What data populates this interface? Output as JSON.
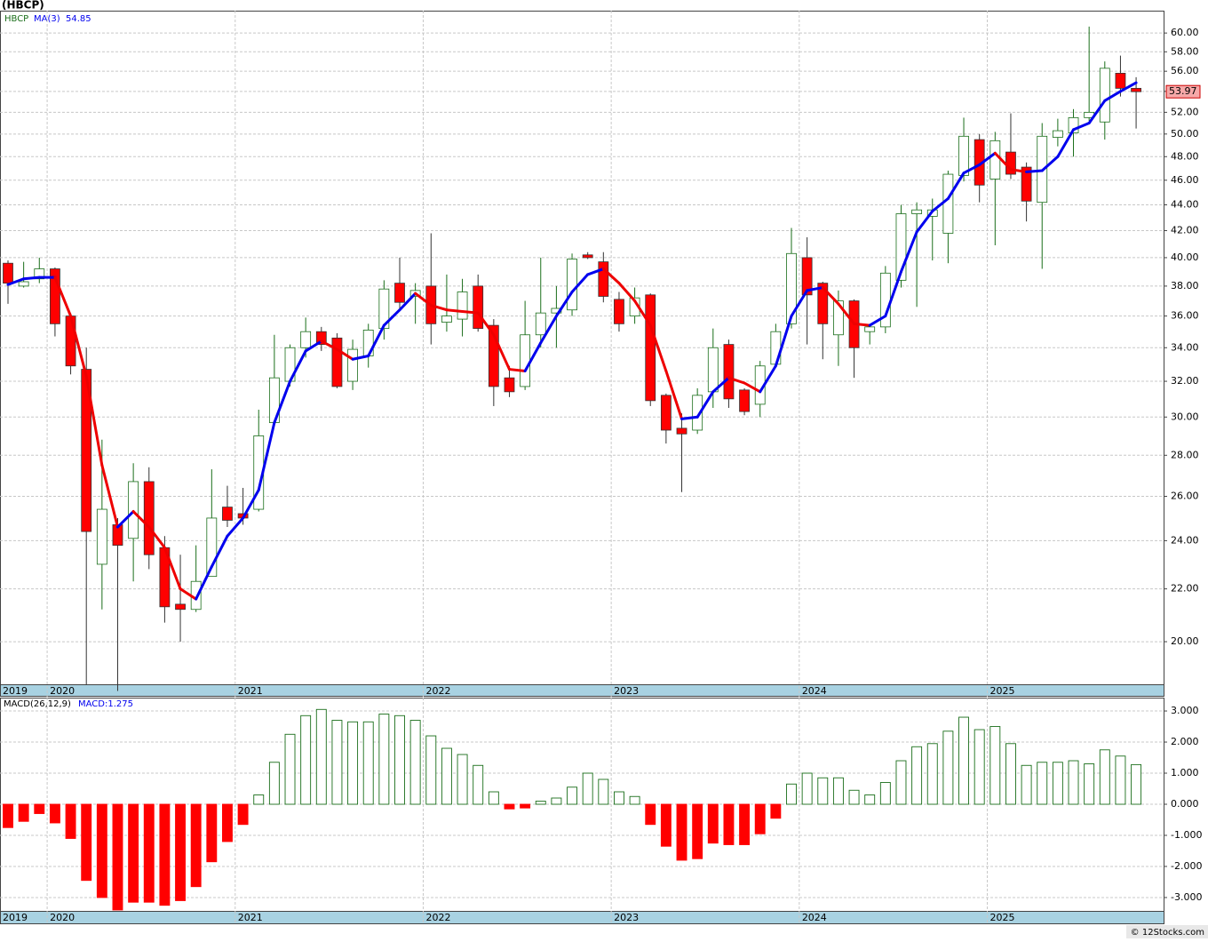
{
  "chart_data": [
    {
      "type": "candlestick",
      "title": "(HBCP)",
      "symbol": "HBCP",
      "log_scale": true,
      "grid": true,
      "up_color": "#ffffff",
      "up_edge": "#1a6e1a",
      "down_color": "#ff0000",
      "x": [
        "2019",
        null,
        null,
        "2020",
        null,
        null,
        null,
        null,
        null,
        null,
        null,
        null,
        null,
        null,
        null,
        "2021",
        null,
        null,
        null,
        null,
        null,
        null,
        null,
        null,
        null,
        null,
        null,
        "2022",
        null,
        null,
        null,
        null,
        null,
        null,
        null,
        null,
        null,
        null,
        null,
        "2023",
        null,
        null,
        null,
        null,
        null,
        null,
        null,
        null,
        null,
        null,
        null,
        "2024",
        null,
        null,
        null,
        null,
        null,
        null,
        null,
        null,
        null,
        null,
        null,
        "2025",
        null,
        null,
        null,
        null,
        null,
        null,
        null,
        null,
        null
      ],
      "open": [
        39.6,
        38.0,
        38.5,
        39.2,
        36.0,
        32.7,
        23.0,
        24.7,
        24.1,
        26.7,
        23.7,
        21.4,
        21.2,
        22.5,
        25.5,
        25.2,
        25.4,
        29.7,
        32.0,
        34.0,
        35.0,
        34.6,
        32.0,
        33.5,
        35.2,
        38.2,
        37.3,
        38.0,
        35.6,
        35.8,
        38.0,
        35.4,
        32.2,
        31.7,
        34.8,
        36.2,
        36.4,
        40.2,
        39.7,
        37.1,
        36.0,
        37.4,
        31.2,
        29.4,
        29.3,
        31.4,
        34.2,
        31.5,
        30.7,
        33.0,
        35.5,
        40.0,
        38.2,
        34.8,
        37.0,
        35.0,
        35.3,
        38.4,
        43.3,
        43.1,
        41.8,
        46.4,
        49.5,
        46.1,
        48.4,
        47.1,
        44.2,
        49.7,
        50.1,
        51.5,
        51.1,
        55.8,
        54.3
      ],
      "high": [
        39.8,
        39.7,
        40.0,
        39.3,
        36.2,
        34.0,
        28.8,
        25.0,
        27.6,
        27.4,
        24.2,
        23.4,
        23.8,
        27.3,
        26.5,
        26.4,
        30.4,
        34.8,
        34.2,
        35.9,
        35.3,
        34.9,
        34.5,
        35.5,
        38.4,
        40.0,
        38.2,
        41.8,
        38.8,
        38.5,
        38.8,
        35.8,
        32.9,
        37.0,
        40.0,
        38.0,
        40.3,
        40.4,
        40.4,
        37.6,
        37.9,
        37.5,
        31.3,
        30.2,
        31.6,
        35.2,
        34.5,
        31.6,
        33.2,
        35.5,
        42.2,
        41.5,
        38.3,
        37.7,
        37.1,
        35.4,
        39.4,
        44.0,
        44.2,
        44.5,
        46.8,
        51.5,
        50.0,
        50.2,
        51.9,
        47.5,
        51.0,
        51.4,
        52.3,
        60.7,
        57.0,
        57.6,
        55.4
      ],
      "low": [
        36.8,
        37.9,
        38.2,
        34.7,
        32.4,
        18.5,
        21.2,
        18.3,
        22.3,
        22.8,
        20.7,
        20.0,
        21.1,
        22.5,
        24.6,
        24.7,
        25.3,
        29.6,
        31.7,
        33.4,
        33.8,
        31.6,
        31.5,
        32.8,
        34.5,
        36.5,
        35.5,
        34.2,
        35.0,
        34.7,
        35.0,
        30.6,
        31.1,
        31.5,
        34.0,
        34.0,
        36.0,
        39.9,
        36.9,
        35.0,
        35.5,
        30.6,
        28.6,
        26.2,
        29.1,
        30.5,
        30.5,
        30.1,
        30.0,
        32.8,
        35.2,
        34.2,
        33.3,
        32.9,
        32.2,
        34.2,
        34.9,
        37.9,
        36.6,
        39.8,
        39.6,
        45.9,
        44.2,
        40.9,
        46.1,
        42.7,
        39.2,
        48.9,
        48.0,
        51.2,
        49.5,
        53.5,
        50.5
      ],
      "close": [
        38.2,
        38.3,
        39.2,
        35.5,
        32.9,
        24.4,
        25.4,
        23.8,
        26.7,
        23.4,
        21.3,
        21.2,
        22.3,
        25.0,
        24.9,
        25.0,
        29.0,
        32.2,
        34.0,
        35.0,
        34.2,
        31.7,
        33.9,
        35.1,
        37.8,
        36.9,
        37.7,
        35.5,
        36.0,
        37.6,
        35.2,
        31.7,
        31.4,
        34.8,
        36.2,
        36.5,
        39.9,
        40.0,
        37.3,
        35.5,
        37.2,
        30.9,
        29.3,
        29.1,
        31.2,
        34.0,
        31.0,
        30.3,
        32.9,
        35.0,
        40.3,
        37.4,
        35.5,
        37.0,
        34.0,
        35.3,
        38.9,
        43.3,
        43.6,
        43.6,
        46.5,
        49.8,
        45.6,
        49.4,
        46.5,
        44.3,
        49.8,
        50.3,
        51.5,
        52.0,
        56.3,
        54.3,
        53.97
      ],
      "ma": {
        "name": "MA(3)",
        "up_color": "#0000ee",
        "down_color": "#ee0000",
        "values": [
          38.1,
          38.5,
          38.6,
          38.6,
          36.0,
          32.3,
          27.5,
          24.6,
          25.3,
          24.6,
          23.7,
          22.0,
          21.6,
          22.9,
          24.2,
          25.0,
          26.3,
          29.7,
          32.0,
          33.8,
          34.4,
          33.9,
          33.3,
          33.5,
          35.4,
          36.4,
          37.5,
          36.7,
          36.4,
          36.3,
          36.2,
          34.8,
          32.7,
          32.6,
          34.3,
          36.0,
          37.6,
          38.8,
          39.2,
          38.2,
          37.0,
          35.4,
          32.6,
          29.9,
          30.0,
          31.4,
          32.2,
          31.9,
          31.4,
          32.9,
          36.0,
          37.7,
          37.9,
          36.8,
          35.5,
          35.4,
          36.0,
          39.0,
          41.9,
          43.5,
          44.5,
          46.6,
          47.3,
          48.3,
          46.9,
          46.7,
          46.8,
          48.0,
          50.4,
          51.0,
          53.1,
          54.0,
          54.85
        ]
      },
      "ylim": [
        18.52,
        62.47
      ],
      "yticks": [
        {
          "value": 20,
          "label": "20.00"
        },
        {
          "value": 22,
          "label": "22.00"
        },
        {
          "value": 24,
          "label": "24.00"
        },
        {
          "value": 26,
          "label": "26.00"
        },
        {
          "value": 28,
          "label": "28.00"
        },
        {
          "value": 30,
          "label": "30.00"
        },
        {
          "value": 32,
          "label": "32.00"
        },
        {
          "value": 34,
          "label": "34.00"
        },
        {
          "value": 36,
          "label": "36.00"
        },
        {
          "value": 38,
          "label": "38.00"
        },
        {
          "value": 40,
          "label": "40.00"
        },
        {
          "value": 42,
          "label": "42.00"
        },
        {
          "value": 44,
          "label": "44.00"
        },
        {
          "value": 46,
          "label": "46.00"
        },
        {
          "value": 48,
          "label": "48.00"
        },
        {
          "value": 50,
          "label": "50.00"
        },
        {
          "value": 52,
          "label": "52.00"
        },
        {
          "value": 54,
          "label": "54.00"
        },
        {
          "value": 56,
          "label": "56.00"
        },
        {
          "value": 58,
          "label": "58.00"
        },
        {
          "value": 60,
          "label": "60.00"
        }
      ]
    },
    {
      "type": "bar",
      "title": "MACD(26,12,9)",
      "legend": "MACD:1.275",
      "grid": true,
      "up_color": "#1a6e1a",
      "down_color": "#ff0000",
      "x": [
        "2019",
        null,
        null,
        "2020",
        null,
        null,
        null,
        null,
        null,
        null,
        null,
        null,
        null,
        null,
        null,
        "2021",
        null,
        null,
        null,
        null,
        null,
        null,
        null,
        null,
        null,
        null,
        null,
        "2022",
        null,
        null,
        null,
        null,
        null,
        null,
        null,
        null,
        null,
        null,
        null,
        "2023",
        null,
        null,
        null,
        null,
        null,
        null,
        null,
        null,
        null,
        null,
        null,
        "2024",
        null,
        null,
        null,
        null,
        null,
        null,
        null,
        null,
        null,
        null,
        null,
        "2025",
        null,
        null,
        null,
        null,
        null,
        null,
        null,
        null,
        null
      ],
      "values": [
        -0.75,
        -0.55,
        -0.3,
        -0.6,
        -1.1,
        -2.45,
        -3.0,
        -3.4,
        -3.15,
        -3.15,
        -3.25,
        -3.1,
        -2.65,
        -1.85,
        -1.2,
        -0.65,
        0.3,
        1.35,
        2.25,
        2.85,
        3.05,
        2.7,
        2.65,
        2.65,
        2.9,
        2.85,
        2.7,
        2.2,
        1.8,
        1.6,
        1.25,
        0.4,
        -0.15,
        -0.12,
        0.1,
        0.2,
        0.55,
        1.0,
        0.8,
        0.4,
        0.25,
        -0.65,
        -1.35,
        -1.8,
        -1.75,
        -1.25,
        -1.3,
        -1.3,
        -0.95,
        -0.45,
        0.65,
        1.0,
        0.85,
        0.85,
        0.45,
        0.3,
        0.7,
        1.4,
        1.85,
        1.95,
        2.35,
        2.8,
        2.4,
        2.5,
        1.95,
        1.25,
        1.35,
        1.35,
        1.4,
        1.3,
        1.75,
        1.55,
        1.275
      ],
      "ylim": [
        -3.43,
        3.43
      ],
      "yticks": [
        {
          "value": -3,
          "label": "-3.000"
        },
        {
          "value": -2,
          "label": "-2.000"
        },
        {
          "value": -1,
          "label": "-1.000"
        },
        {
          "value": 0,
          "label": "0.000"
        },
        {
          "value": 1,
          "label": "1.000"
        },
        {
          "value": 2,
          "label": "2.000"
        },
        {
          "value": 3,
          "label": "3.000"
        }
      ]
    }
  ],
  "footer": "© 12Stocks.com"
}
